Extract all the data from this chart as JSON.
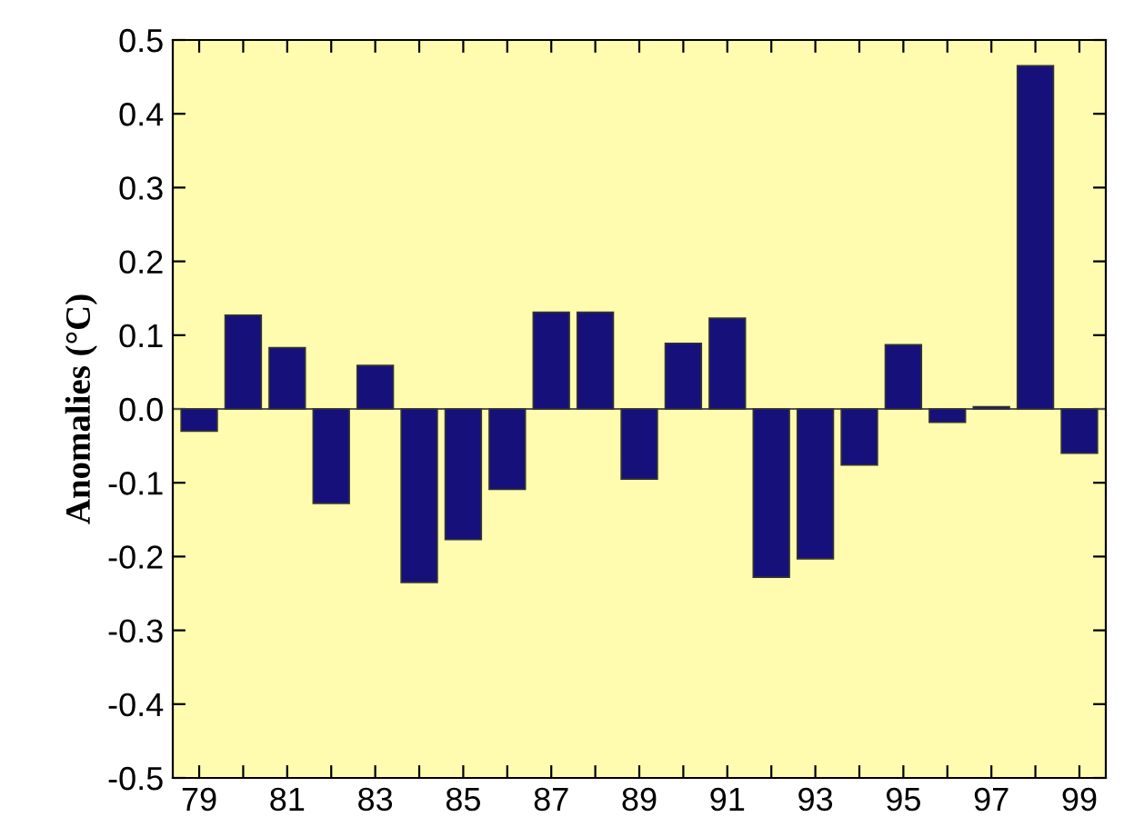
{
  "chart_data": {
    "type": "bar",
    "ylabel": "Anomalies (°C)",
    "categories": [
      "79",
      null,
      "81",
      null,
      "83",
      null,
      "85",
      null,
      "87",
      null,
      "89",
      null,
      "91",
      null,
      "93",
      null,
      "95",
      null,
      "97",
      null,
      "99"
    ],
    "values": [
      -0.03,
      0.127,
      0.083,
      -0.128,
      0.059,
      -0.235,
      -0.177,
      -0.109,
      0.131,
      0.131,
      -0.095,
      0.089,
      0.123,
      -0.228,
      -0.203,
      -0.076,
      0.087,
      -0.018,
      0.003,
      0.465,
      -0.06
    ],
    "color": "#16107a",
    "ylim": [
      -0.5,
      0.5
    ],
    "yticks": [
      {
        "value": -0.5,
        "label": "-0.5"
      },
      {
        "value": -0.4,
        "label": "-0.4"
      },
      {
        "value": -0.3,
        "label": "-0.3"
      },
      {
        "value": -0.2,
        "label": "-0.2"
      },
      {
        "value": -0.1,
        "label": "-0.1"
      },
      {
        "value": 0,
        "label": "0.0"
      },
      {
        "value": 0.1,
        "label": "0.1"
      },
      {
        "value": 0.2,
        "label": "0.2"
      },
      {
        "value": 0.3,
        "label": "0.3"
      },
      {
        "value": 0.4,
        "label": "0.4"
      },
      {
        "value": 0.5,
        "label": "0.5"
      }
    ],
    "ref_lines": [
      {
        "axis": "y",
        "value": 0,
        "color": "#555555"
      }
    ],
    "legend": false
  }
}
